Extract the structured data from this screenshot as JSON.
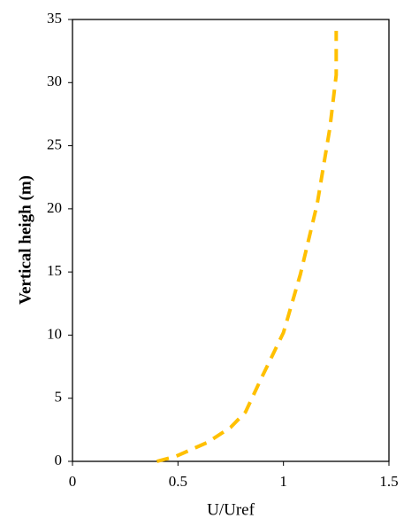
{
  "chart_data": {
    "type": "line",
    "xlabel": "U/Uref",
    "ylabel": "Vertical heigh (m)",
    "x": [
      0.4,
      0.49,
      0.64,
      0.75,
      0.82,
      0.89,
      1.0,
      1.08,
      1.16,
      1.22,
      1.25,
      1.25
    ],
    "series": [
      {
        "color": "#ffc000",
        "values": [
          0,
          0.4,
          1.5,
          2.7,
          3.9,
          6.4,
          10.2,
          14.8,
          20.4,
          26.4,
          30.6,
          34.1
        ]
      }
    ],
    "xlim": [
      0,
      1.5
    ],
    "xticks": [
      0,
      0.5,
      1,
      1.5
    ],
    "ylim": [
      0,
      35
    ],
    "yticks": [
      0,
      5,
      10,
      15,
      20,
      25,
      30,
      35
    ],
    "grid": false
  }
}
